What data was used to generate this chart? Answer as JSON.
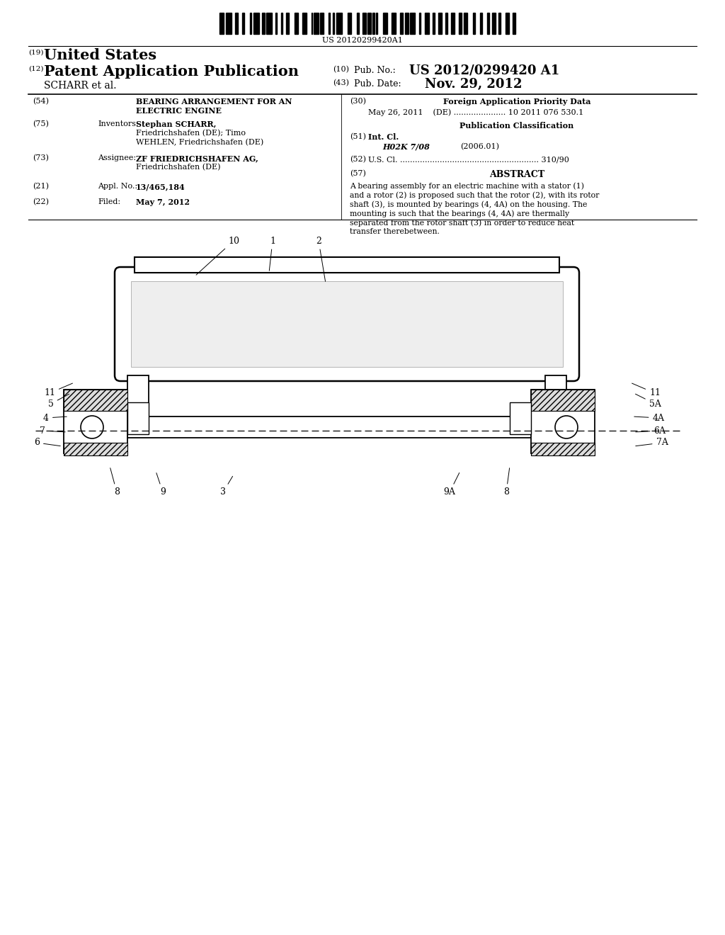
{
  "background_color": "#ffffff",
  "barcode_text": "US 20120299420A1",
  "header_19_text": "United States",
  "header_12_text": "Patent Application Publication",
  "header_scharr": "SCHARR et al.",
  "header_10_label": "(10)  Pub. No.:",
  "header_10_value": "US 2012/0299420 A1",
  "header_43_label": "(43)  Pub. Date:",
  "header_43_value": "Nov. 29, 2012",
  "field54_label": "(54)",
  "field54_title1": "BEARING ARRANGEMENT FOR AN",
  "field54_title2": "ELECTRIC ENGINE",
  "field75_label": "(75)",
  "field75_role": "Inventors:",
  "field75_text1": "Stephan SCHARR,",
  "field75_text2": "Friedrichshafen (DE); Timo",
  "field75_text3": "WEHLEN, Friedrichshafen (DE)",
  "field73_label": "(73)",
  "field73_role": "Assignee:",
  "field73_text1": "ZF FRIEDRICHSHAFEN AG,",
  "field73_text2": "Friedrichshafen (DE)",
  "field21_label": "(21)",
  "field21_role": "Appl. No.:",
  "field21_text": "13/465,184",
  "field22_label": "(22)",
  "field22_role": "Filed:",
  "field22_text": "May 7, 2012",
  "field30_label": "(30)",
  "field30_title": "Foreign Application Priority Data",
  "field30_date": "May 26, 2011    (DE) ..................... 10 2011 076 530.1",
  "pub_class_title": "Publication Classification",
  "field51_label": "(51)",
  "field51_title": "Int. Cl.",
  "field51_class": "H02K 7/08",
  "field51_year": "(2006.01)",
  "field52_label": "(52)",
  "field52_title": "U.S. Cl. ........................................................ 310/90",
  "field57_label": "(57)",
  "field57_title": "ABSTRACT",
  "abstract_lines": [
    "A bearing assembly for an electric machine with a stator (1)",
    "and a rotor (2) is proposed such that the rotor (2), with its rotor",
    "shaft (3), is mounted by bearings (4, 4A) on the housing. The",
    "mounting is such that the bearings (4, 4A) are thermally",
    "separated from the rotor shaft (3) in order to reduce heat",
    "transfer therebetween."
  ]
}
